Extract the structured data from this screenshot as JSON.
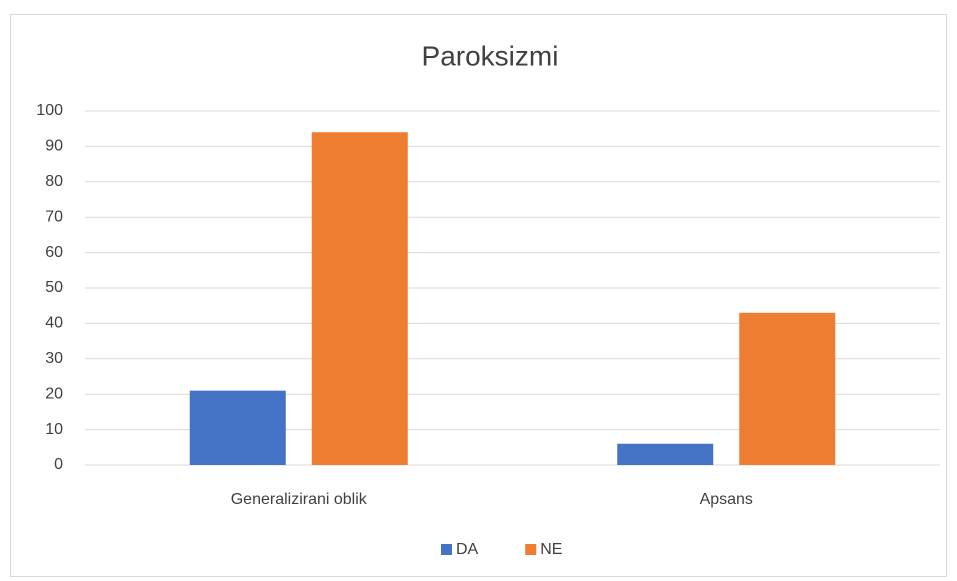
{
  "chart_data": {
    "type": "bar",
    "title": "Paroksizmi",
    "categories": [
      "Generalizirani oblik",
      "Apsans"
    ],
    "series": [
      {
        "name": "DA",
        "color": "#4472c4",
        "values": [
          21,
          6
        ]
      },
      {
        "name": "NE",
        "color": "#ed7d31",
        "values": [
          94,
          43
        ]
      }
    ],
    "ylim": [
      0,
      100
    ],
    "yticks": [
      0,
      10,
      20,
      30,
      40,
      50,
      60,
      70,
      80,
      90,
      100
    ],
    "grid": true,
    "legend": "bottom"
  }
}
